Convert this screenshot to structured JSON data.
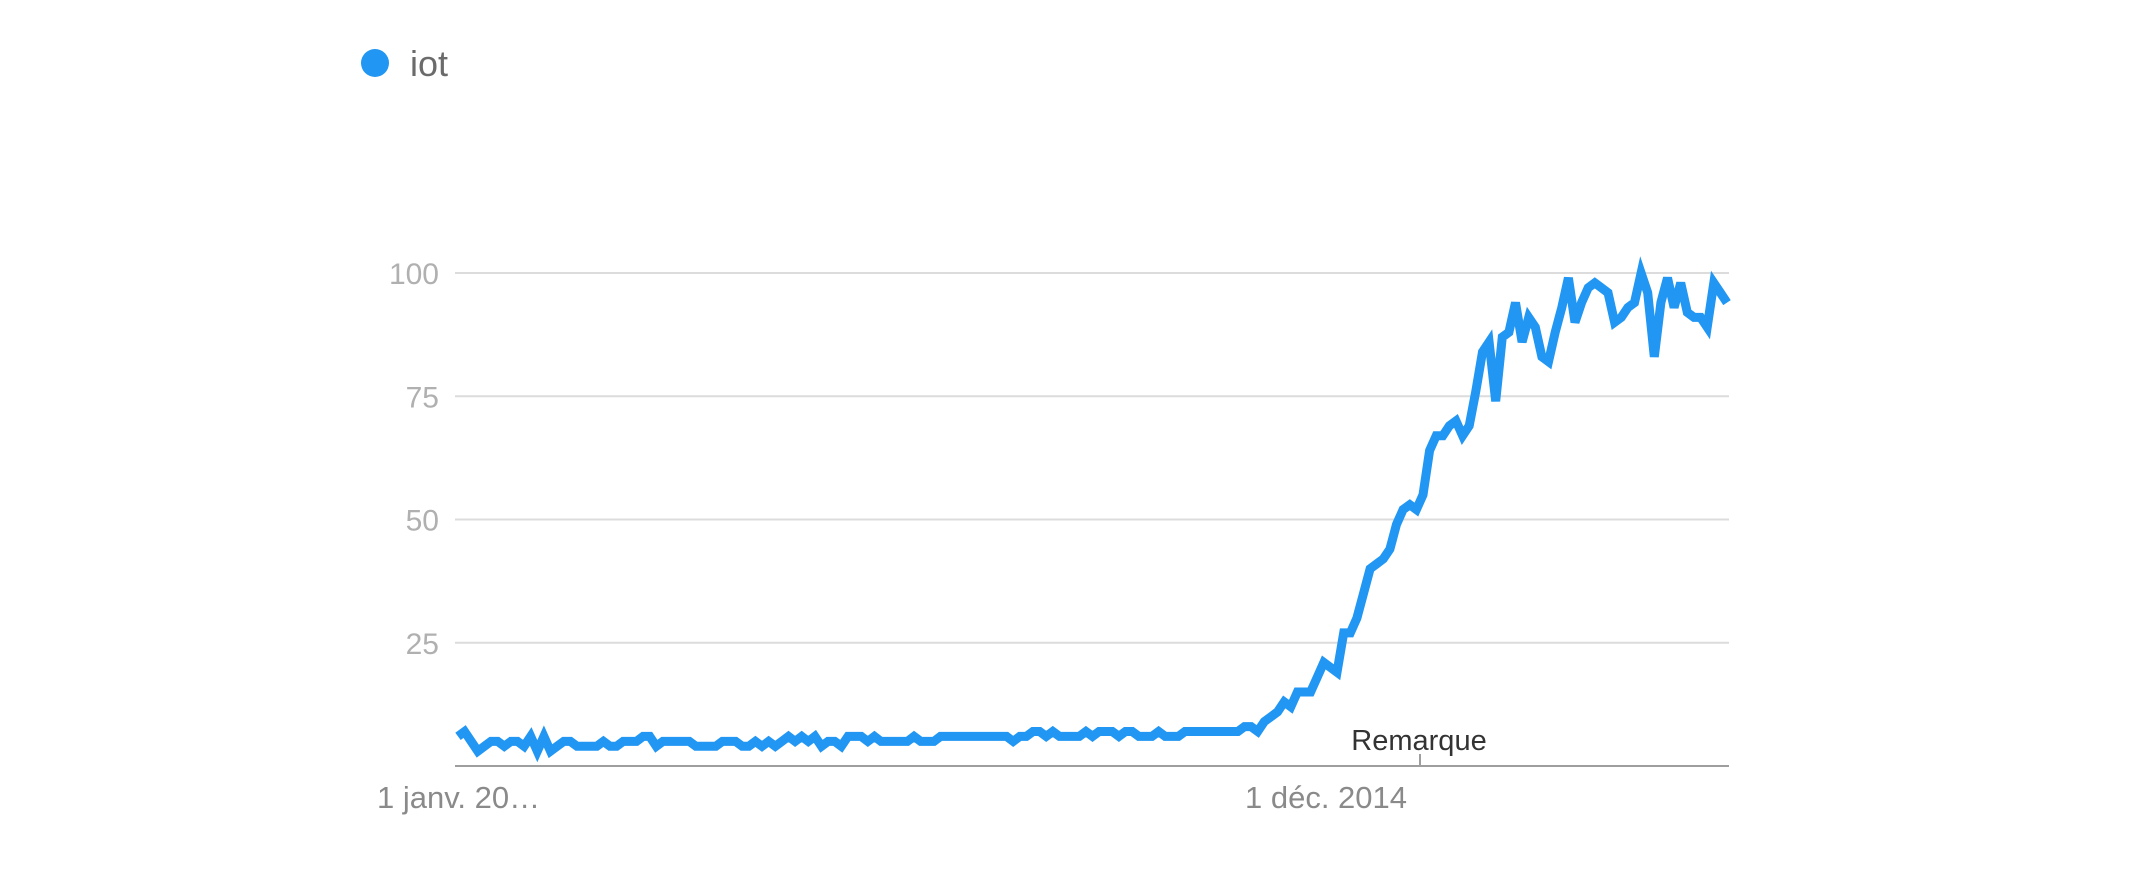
{
  "legend": {
    "label": "iot",
    "color": "#2196f3"
  },
  "chart_data": {
    "type": "line",
    "title": "",
    "xlabel": "",
    "ylabel": "",
    "ylim": [
      0,
      100
    ],
    "yticks": [
      "100",
      "75",
      "50",
      "25"
    ],
    "xticks": [
      "1 janv. 20…",
      "1 déc. 2014"
    ],
    "grid": true,
    "legend_position": "top-left",
    "annotation": "Remarque",
    "series": [
      {
        "name": "iot",
        "color": "#2196f3",
        "values": [
          6,
          7,
          5,
          3,
          4,
          5,
          5,
          4,
          5,
          5,
          4,
          6,
          3,
          6,
          3,
          4,
          5,
          5,
          4,
          4,
          4,
          4,
          5,
          4,
          4,
          5,
          5,
          5,
          6,
          6,
          4,
          5,
          5,
          5,
          5,
          5,
          4,
          4,
          4,
          4,
          5,
          5,
          5,
          4,
          4,
          5,
          4,
          5,
          4,
          5,
          6,
          5,
          6,
          5,
          6,
          4,
          5,
          5,
          4,
          6,
          6,
          6,
          5,
          6,
          5,
          5,
          5,
          5,
          5,
          6,
          5,
          5,
          5,
          6,
          6,
          6,
          6,
          6,
          6,
          6,
          6,
          6,
          6,
          6,
          5,
          6,
          6,
          7,
          7,
          6,
          7,
          6,
          6,
          6,
          6,
          7,
          6,
          7,
          7,
          7,
          6,
          7,
          7,
          6,
          6,
          6,
          7,
          6,
          6,
          6,
          7,
          7,
          7,
          7,
          7,
          7,
          7,
          7,
          7,
          8,
          8,
          7,
          9,
          10,
          11,
          13,
          12,
          15,
          15,
          15,
          18,
          21,
          20,
          19,
          27,
          27,
          30,
          35,
          40,
          41,
          42,
          44,
          49,
          52,
          53,
          52,
          55,
          64,
          67,
          67,
          69,
          70,
          67,
          69,
          76,
          84,
          86,
          74,
          87,
          88,
          94,
          86,
          91,
          89,
          83,
          82,
          88,
          93,
          99,
          90,
          94,
          97,
          98,
          97,
          96,
          90,
          91,
          93,
          94,
          100,
          96,
          83,
          94,
          99,
          93,
          98,
          92,
          91,
          91,
          89,
          98,
          96,
          94
        ]
      }
    ]
  }
}
